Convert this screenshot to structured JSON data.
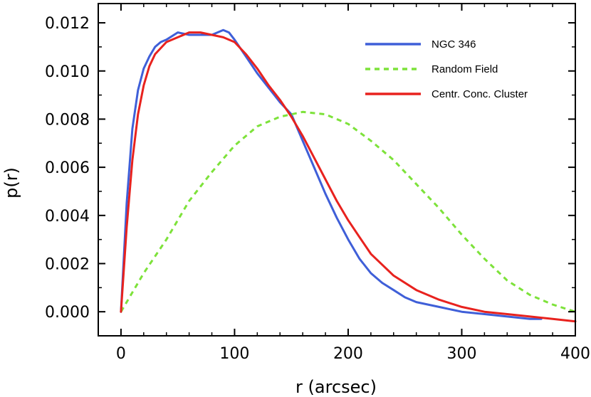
{
  "chart_data": {
    "type": "line",
    "title": "",
    "xlabel": "r (arcsec)",
    "ylabel": "p(r)",
    "xlim": [
      -20,
      400
    ],
    "ylim": [
      -0.001,
      0.0128
    ],
    "x_ticks": [
      "0",
      "100",
      "200",
      "300",
      "400"
    ],
    "y_ticks": [
      "0.000",
      "0.002",
      "0.004",
      "0.006",
      "0.008",
      "0.010",
      "0.012"
    ],
    "x_tick_values": [
      0,
      100,
      200,
      300,
      400
    ],
    "y_tick_values": [
      0.0,
      0.002,
      0.004,
      0.006,
      0.008,
      0.01,
      0.012
    ],
    "legend_position": "top-right",
    "series": [
      {
        "name": "NGC 346",
        "color": "#3f5fd8",
        "style": "solid",
        "x": [
          0,
          5,
          10,
          15,
          20,
          25,
          30,
          35,
          40,
          50,
          60,
          70,
          80,
          90,
          95,
          100,
          110,
          120,
          130,
          140,
          150,
          160,
          170,
          180,
          190,
          200,
          210,
          220,
          230,
          240,
          250,
          260,
          270,
          280,
          290,
          300,
          320,
          340,
          360,
          370
        ],
        "values": [
          0.0,
          0.0045,
          0.0076,
          0.0092,
          0.0101,
          0.0106,
          0.011,
          0.0112,
          0.0113,
          0.0116,
          0.0115,
          0.0115,
          0.0115,
          0.0117,
          0.0116,
          0.0113,
          0.0106,
          0.0099,
          0.0093,
          0.0087,
          0.0082,
          0.0071,
          0.006,
          0.0049,
          0.0039,
          0.003,
          0.0022,
          0.0016,
          0.0012,
          0.0009,
          0.0006,
          0.0004,
          0.0003,
          0.0002,
          0.0001,
          0.0,
          -0.0001,
          -0.0002,
          -0.0003,
          -0.0003
        ]
      },
      {
        "name": "Random Field",
        "color": "#7de23a",
        "style": "dashed",
        "x": [
          0,
          20,
          40,
          60,
          80,
          100,
          120,
          140,
          160,
          180,
          200,
          220,
          240,
          260,
          280,
          300,
          320,
          340,
          360,
          380,
          400
        ],
        "values": [
          0.0,
          0.0016,
          0.003,
          0.0046,
          0.0058,
          0.0069,
          0.0077,
          0.0081,
          0.0083,
          0.0082,
          0.0078,
          0.0071,
          0.0063,
          0.0053,
          0.0043,
          0.0032,
          0.0022,
          0.0013,
          0.0007,
          0.0003,
          0.0
        ]
      },
      {
        "name": "Centr. Conc. Cluster",
        "color": "#e8221e",
        "style": "solid",
        "x": [
          0,
          5,
          10,
          15,
          20,
          25,
          30,
          40,
          50,
          60,
          70,
          80,
          90,
          100,
          110,
          120,
          130,
          140,
          150,
          160,
          170,
          180,
          190,
          200,
          210,
          220,
          240,
          260,
          280,
          300,
          320,
          340,
          360,
          380,
          400
        ],
        "values": [
          0.0,
          0.0035,
          0.0063,
          0.0082,
          0.0094,
          0.0102,
          0.0107,
          0.0112,
          0.0114,
          0.0116,
          0.0116,
          0.0115,
          0.0114,
          0.0112,
          0.0107,
          0.0101,
          0.0094,
          0.0088,
          0.0081,
          0.0073,
          0.0064,
          0.0055,
          0.0046,
          0.0038,
          0.0031,
          0.0024,
          0.0015,
          0.0009,
          0.0005,
          0.0002,
          0.0,
          -0.0001,
          -0.0002,
          -0.0003,
          -0.0004
        ]
      }
    ]
  }
}
